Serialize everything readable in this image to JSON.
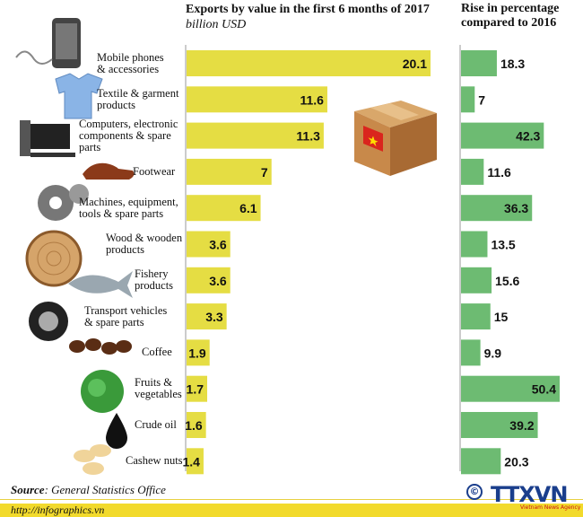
{
  "chart_data": [
    {
      "type": "bar",
      "orientation": "horizontal",
      "title": "Exports by value in the first 6 months of 2017",
      "subtitle": "billion USD",
      "categories": [
        "Mobile phones & accessories",
        "Textile & garment products",
        "Computers, electronic components & spare parts",
        "Footwear",
        "Machines, equipment, tools & spare parts",
        "Wood & wooden products",
        "Fishery products",
        "Transport vehicles & spare parts",
        "Coffee",
        "Fruits & vegetables",
        "Crude oil",
        "Cashew nuts"
      ],
      "values": [
        20.1,
        11.6,
        11.3,
        7,
        6.1,
        3.6,
        3.6,
        3.3,
        1.9,
        1.7,
        1.6,
        1.4
      ],
      "value_labels": [
        "20.1",
        "11.6",
        "11.3",
        "7",
        "6.1",
        "3.6",
        "3.6",
        "3.3",
        "1.9",
        "1.7",
        "1.6",
        "1.4"
      ],
      "color": "#e5dd43",
      "xlim": [
        0,
        20.1
      ]
    },
    {
      "type": "bar",
      "orientation": "horizontal",
      "title": "Rise in percentage compared to 2016",
      "categories": [
        "Mobile phones & accessories",
        "Textile & garment products",
        "Computers, electronic components & spare parts",
        "Footwear",
        "Machines, equipment, tools & spare parts",
        "Wood & wooden products",
        "Fishery products",
        "Transport vehicles & spare parts",
        "Coffee",
        "Fruits & vegetables",
        "Crude oil",
        "Cashew nuts"
      ],
      "values": [
        18.3,
        7,
        42.3,
        11.6,
        36.3,
        13.5,
        15.6,
        15,
        9.9,
        50.4,
        39.2,
        20.3
      ],
      "value_labels": [
        "18.3",
        "7",
        "42.3",
        "11.6",
        "36.3",
        "13.5",
        "15.6",
        "15",
        "9.9",
        "50.4",
        "39.2",
        "20.3"
      ],
      "color": "#6dbb72",
      "xlim": [
        0,
        50.4
      ]
    }
  ],
  "labels": {
    "exports_title": "Exports by value in the first 6 months of 2017",
    "exports_unit": "billion USD",
    "rise_title": "Rise in percentage compared to 2016",
    "categories": [
      [
        "Mobile phones",
        "& accessories"
      ],
      [
        "Textile & garment",
        "products"
      ],
      [
        "Computers, electronic",
        "components & spare",
        "parts"
      ],
      [
        "Footwear"
      ],
      [
        "Machines, equipment,",
        "tools & spare parts"
      ],
      [
        "Wood & wooden",
        "products"
      ],
      [
        "Fishery",
        "products"
      ],
      [
        "Transport vehicles",
        "& spare parts"
      ],
      [
        "Coffee"
      ],
      [
        "Fruits &",
        "vegetables"
      ],
      [
        "Crude oil"
      ],
      [
        "Cashew nuts"
      ]
    ]
  },
  "icons": [
    "mobile-phone-icon",
    "shirt-icon",
    "computer-icon",
    "shoe-icon",
    "gears-icon",
    "wood-log-icon",
    "fish-icon",
    "tire-icon",
    "coffee-beans-icon",
    "lettuce-icon",
    "oil-drop-icon",
    "cashew-icon",
    "vietnam-box-icon"
  ],
  "source": {
    "label": "Source",
    "text": ": General Statistics Office"
  },
  "footer": {
    "url": "http://infographics.vn",
    "logo_text": "TTXVN",
    "logo_sub": "Vietnam News Agency",
    "copyright_symbol": "©"
  }
}
